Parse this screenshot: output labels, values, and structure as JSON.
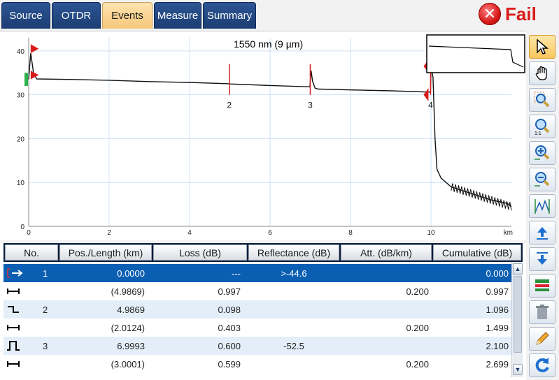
{
  "tabs": [
    {
      "label": "Source",
      "active": false
    },
    {
      "label": "OTDR",
      "active": false
    },
    {
      "label": "Events",
      "active": true
    },
    {
      "label": "Measure",
      "active": false
    },
    {
      "label": "Summary",
      "active": false
    }
  ],
  "status": {
    "label": "Fail",
    "color": "#d81b1b"
  },
  "graph": {
    "title": "1550 nm (9 µm)"
  },
  "chart_data": {
    "type": "line",
    "xlabel": "km",
    "ylabel": "",
    "xlim": [
      0,
      12
    ],
    "ylim": [
      0,
      43
    ],
    "x_ticks": [
      0,
      2,
      4,
      6,
      8,
      10
    ],
    "y_ticks": [
      0,
      10,
      20,
      30,
      40
    ],
    "trace": {
      "x": [
        0,
        0.05,
        0.12,
        0.2,
        1,
        2,
        3,
        4,
        4.99,
        5.01,
        6,
        6.99,
        7.02,
        7.06,
        7.12,
        7.2,
        8,
        9,
        9.99,
        10.0,
        10.05,
        10.1,
        10.15,
        10.25,
        10.5,
        11,
        11.5,
        11.9,
        12
      ],
      "y": [
        33.5,
        39.5,
        35,
        33.6,
        33.5,
        33.3,
        33.0,
        32.8,
        32.5,
        32.45,
        32.1,
        31.8,
        35.5,
        33,
        31.5,
        31.3,
        31.1,
        30.9,
        30.6,
        36.5,
        34,
        20,
        13,
        11,
        9,
        7.5,
        6,
        5.2,
        4.5
      ]
    },
    "events": [
      {
        "label": "2",
        "x": 4.9869
      },
      {
        "label": "3",
        "x": 6.9993
      },
      {
        "label": "4",
        "x": 9.99
      }
    ]
  },
  "table": {
    "headers": [
      "No.",
      "Pos./Length (km)",
      "Loss (dB)",
      "Reflectance (dB)",
      "Att. (dB/km)",
      "Cumulative (dB)"
    ],
    "rows": [
      {
        "icon": "launch-arrow-icon",
        "no": "1",
        "pos": "0.0000",
        "loss": "---",
        "refl": ">-44.6",
        "att": "",
        "cum": "0.000",
        "style": "sel"
      },
      {
        "icon": "span-icon",
        "no": "",
        "pos": "(4.9869)",
        "loss": "0.997",
        "refl": "",
        "att": "0.200",
        "cum": "0.997",
        "style": "plain"
      },
      {
        "icon": "nonreflective-event-icon",
        "no": "2",
        "pos": "4.9869",
        "loss": "0.098",
        "refl": "",
        "att": "",
        "cum": "1.096",
        "style": "alt"
      },
      {
        "icon": "span-icon",
        "no": "",
        "pos": "(2.0124)",
        "loss": "0.403",
        "refl": "",
        "att": "0.200",
        "cum": "1.499",
        "style": "plain"
      },
      {
        "icon": "reflective-event-icon",
        "no": "3",
        "pos": "6.9993",
        "loss": "0.600",
        "refl": "-52.5",
        "att": "",
        "cum": "2.100",
        "style": "alt"
      },
      {
        "icon": "span-icon",
        "no": "",
        "pos": "(3.0001)",
        "loss": "0.599",
        "refl": "",
        "att": "0.200",
        "cum": "2.699",
        "style": "plain"
      }
    ]
  },
  "toolbar": [
    {
      "name": "select-pointer-icon"
    },
    {
      "name": "pan-hand-icon"
    },
    {
      "name": "zoom-area-icon"
    },
    {
      "name": "zoom-reset-icon"
    },
    {
      "name": "zoom-in-icon"
    },
    {
      "name": "zoom-out-icon"
    },
    {
      "name": "fit-trace-icon"
    },
    {
      "name": "move-up-icon"
    },
    {
      "name": "move-down-icon"
    },
    {
      "name": "event-table-icon"
    },
    {
      "name": "delete-icon"
    },
    {
      "name": "edit-icon"
    },
    {
      "name": "refresh-icon"
    }
  ]
}
